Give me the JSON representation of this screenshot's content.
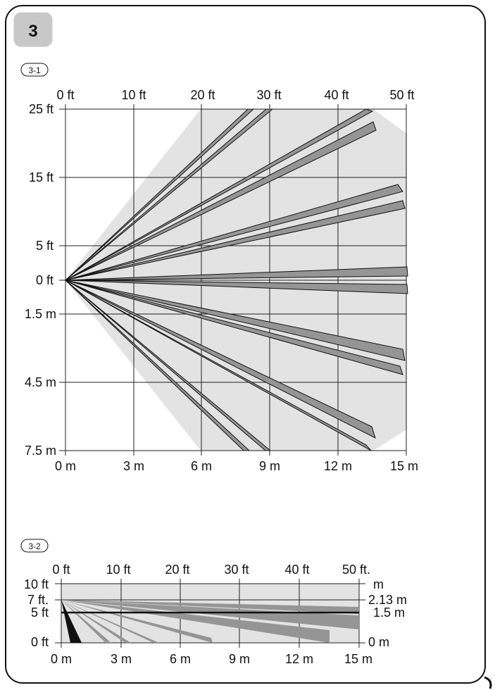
{
  "figure_number": "3",
  "diagrams": [
    {
      "label": "3-1",
      "top_ticks": [
        "0 ft",
        "10 ft",
        "20 ft",
        "30 ft",
        "40 ft",
        "50 ft"
      ],
      "bottom_ticks": [
        "0 m",
        "3 m",
        "6 m",
        "9 m",
        "12 m",
        "15 m"
      ],
      "left_ticks": [
        "25 ft",
        "15 ft",
        "5 ft",
        "0 ft",
        "1.5 m",
        "4.5 m",
        "7.5 m"
      ]
    },
    {
      "label": "3-2",
      "top_ticks": [
        "0 ft",
        "10 ft",
        "20 ft",
        "30 ft",
        "40 ft",
        "50 ft."
      ],
      "bottom_ticks": [
        "0 m",
        "3 m",
        "6 m",
        "9 m",
        "12 m",
        "15 m"
      ],
      "left_ticks": [
        "10 ft",
        "7 ft.",
        "5 ft",
        "0 ft"
      ],
      "right_ticks": [
        "m",
        "2.13 m",
        "1.5 m",
        "0 m"
      ]
    }
  ],
  "colors": {
    "coverage": "#e3e3e3",
    "beam": "#959595",
    "beam_near": "#111111",
    "grid": "#222222",
    "badge": "#c8c8c8"
  }
}
